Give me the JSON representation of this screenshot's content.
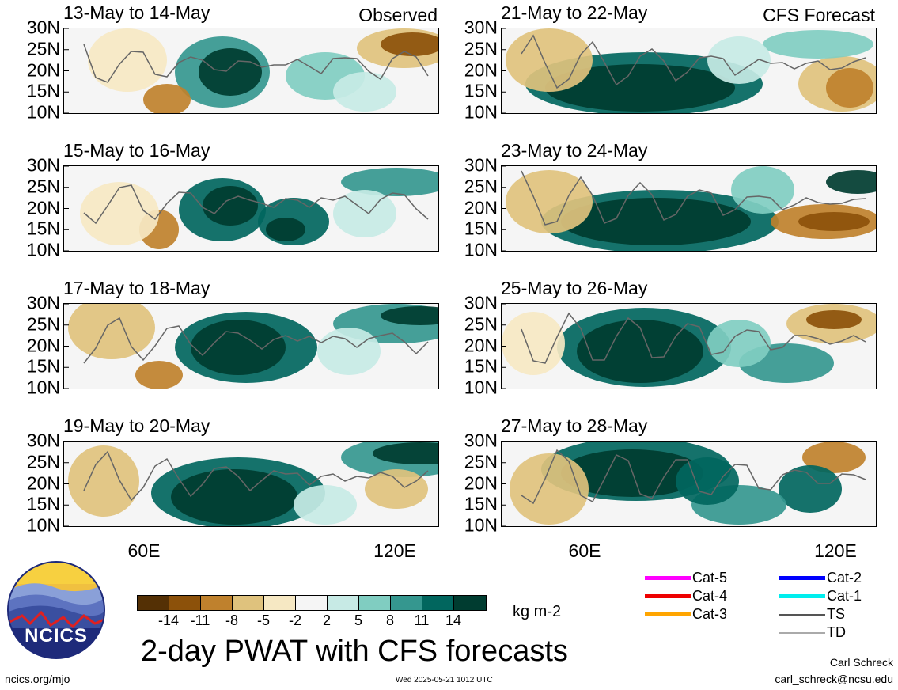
{
  "panels": [
    {
      "title": "13-May to 14-May",
      "tag": "Observed"
    },
    {
      "title": "15-May to 16-May",
      "tag": ""
    },
    {
      "title": "17-May to 18-May",
      "tag": ""
    },
    {
      "title": "19-May to 20-May",
      "tag": ""
    },
    {
      "title": "21-May to 22-May",
      "tag": "CFS Forecast"
    },
    {
      "title": "23-May to 24-May",
      "tag": ""
    },
    {
      "title": "25-May to 26-May",
      "tag": ""
    },
    {
      "title": "27-May to 28-May",
      "tag": ""
    }
  ],
  "lat_labels": [
    "30N",
    "25N",
    "20N",
    "15N",
    "10N"
  ],
  "lon_labels": [
    "60E",
    "120E"
  ],
  "colorbar": {
    "colors": [
      "#543005",
      "#8c510a",
      "#bf812d",
      "#dfc27d",
      "#f6e8c3",
      "#f5f5f5",
      "#c7eae5",
      "#80cdc1",
      "#35978f",
      "#01665e",
      "#003c30"
    ],
    "ticks": [
      "-14",
      "-11",
      "-8",
      "-5",
      "-2",
      "2",
      "5",
      "8",
      "11",
      "14"
    ],
    "units": "kg m-2"
  },
  "title": "2-day PWAT with CFS forecasts",
  "legend": [
    {
      "label": "Cat-5",
      "color": "#ff00ff"
    },
    {
      "label": "Cat-4",
      "color": "#ee0000"
    },
    {
      "label": "Cat-3",
      "color": "#ffa500"
    },
    {
      "label": "Cat-2",
      "color": "#0000ff"
    },
    {
      "label": "Cat-1",
      "color": "#00eeee"
    },
    {
      "label": "TS",
      "color": "#555555"
    },
    {
      "label": "TD",
      "color": "#aaaaaa"
    }
  ],
  "logo": {
    "text": "NCICS"
  },
  "footer": {
    "url": "ncics.org/mjo",
    "timestamp": "Wed 2025-05-21 1012 UTC",
    "author": "Carl Schreck",
    "email": "carl_schreck@ncsu.edu"
  }
}
